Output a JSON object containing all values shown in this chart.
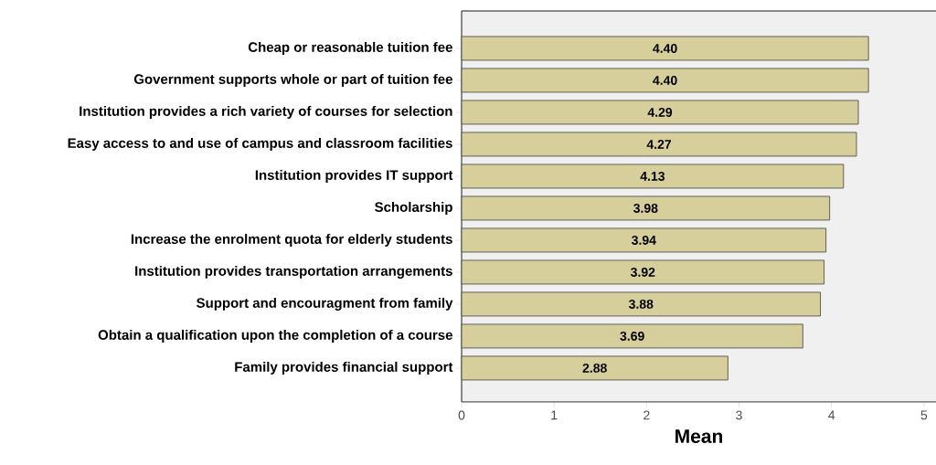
{
  "chart_data": {
    "type": "bar",
    "orientation": "horizontal",
    "xlabel": "Mean",
    "categories": [
      "Cheap or reasonable tuition fee",
      "Government supports whole or part of tuition fee",
      "Institution provides a rich variety of courses for selection",
      "Easy access to and use of campus and classroom facilities",
      "Institution provides IT support",
      "Scholarship",
      "Increase the enrolment quota for elderly students",
      "Institution provides transportation arrangements",
      "Support and encouragment from family",
      "Obtain a qualification upon the completion of a course",
      "Family provides financial support"
    ],
    "values": [
      4.4,
      4.4,
      4.29,
      4.27,
      4.13,
      3.98,
      3.94,
      3.92,
      3.88,
      3.69,
      2.88
    ],
    "value_labels": [
      "4.40",
      "4.40",
      "4.29",
      "4.27",
      "4.13",
      "3.98",
      "3.94",
      "3.92",
      "3.88",
      "3.69",
      "2.88"
    ],
    "color": "#d6cf9c",
    "xlim": [
      0,
      5.13
    ],
    "xticks": [
      0,
      1,
      2,
      3,
      4,
      5
    ],
    "grid": false
  }
}
